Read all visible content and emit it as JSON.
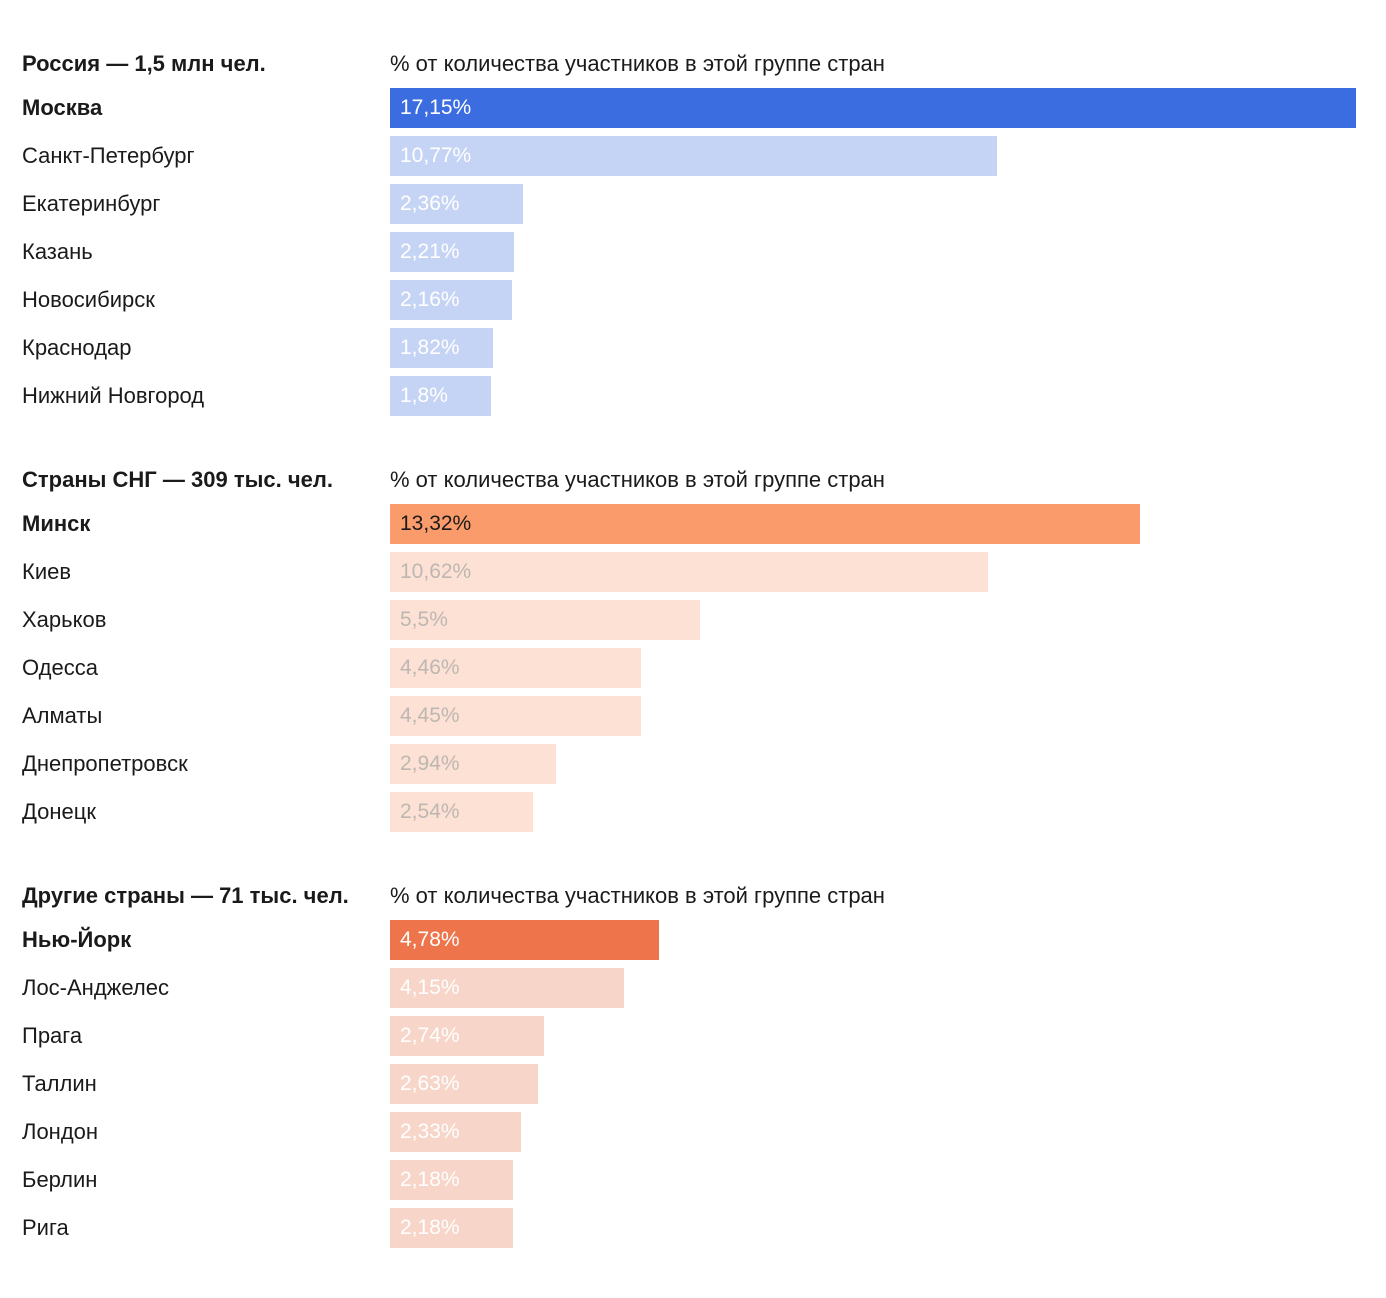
{
  "chart_data": [
    {
      "type": "bar",
      "orientation": "horizontal",
      "title": "Россия — 1,5 млн чел.",
      "subtitle": "% от количества участников в этой группе стран",
      "categories": [
        "Москва",
        "Санкт-Петербург",
        "Екатеринбург",
        "Казань",
        "Новосибирск",
        "Краснодар",
        "Нижний Новгород"
      ],
      "values": [
        17.15,
        10.77,
        2.36,
        2.21,
        2.16,
        1.82,
        1.8
      ],
      "value_labels": [
        "17,15%",
        "10,77%",
        "2,36%",
        "2,21%",
        "2,16%",
        "1,82%",
        "1,8%"
      ],
      "highlight_index": 0,
      "colors": {
        "highlight": "#3b6de1",
        "default": "#c5d3f4",
        "label_highlight": "#ffffff",
        "label_default": "#ffffff"
      }
    },
    {
      "type": "bar",
      "orientation": "horizontal",
      "title": "Страны СНГ — 309 тыс. чел.",
      "subtitle": "% от количества участников в этой группе стран",
      "categories": [
        "Минск",
        "Киев",
        "Харьков",
        "Одесса",
        "Алматы",
        "Днепропетровск",
        "Донецк"
      ],
      "values": [
        13.32,
        10.62,
        5.5,
        4.46,
        4.45,
        2.94,
        2.54
      ],
      "value_labels": [
        "13,32%",
        "10,62%",
        "5,5%",
        "4,46%",
        "4,45%",
        "2,94%",
        "2,54%"
      ],
      "highlight_index": 0,
      "colors": {
        "highlight": "#fa9b6b",
        "default": "#fde1d4",
        "label_highlight": "#1a1a1a",
        "label_default": "#bdb7b2"
      }
    },
    {
      "type": "bar",
      "orientation": "horizontal",
      "title": "Другие страны — 71 тыс. чел.",
      "subtitle": "% от количества участников в этой группе стран",
      "categories": [
        "Нью-Йорк",
        "Лос-Анджелес",
        "Прага",
        "Таллин",
        "Лондон",
        "Берлин",
        "Рига"
      ],
      "values": [
        4.78,
        4.15,
        2.74,
        2.63,
        2.33,
        2.18,
        2.18
      ],
      "value_labels": [
        "4,78%",
        "4,15%",
        "2,74%",
        "2,63%",
        "2,33%",
        "2,18%",
        "2,18%"
      ],
      "highlight_index": 0,
      "colors": {
        "highlight": "#ee754b",
        "default": "#f7d5c8",
        "label_highlight": "#ffffff",
        "label_default": "#ffffff"
      }
    }
  ]
}
